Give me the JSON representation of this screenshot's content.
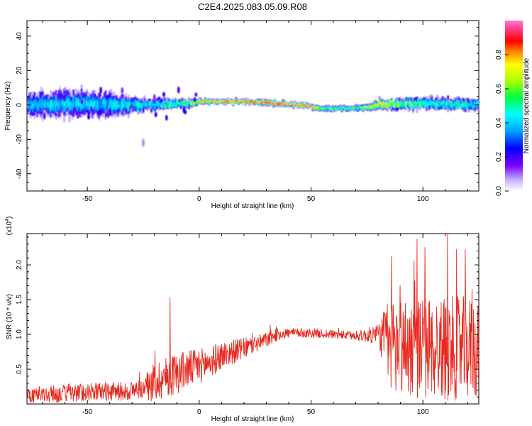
{
  "title": "C2E4.2025.083.05.09.R08",
  "colors": {
    "snr_line": "#e8281e",
    "axes": "#000000"
  },
  "chart_data": [
    {
      "type": "heatmap",
      "title": "",
      "xlabel": "Height of straight line (km)",
      "ylabel": "Frequency (Hz)",
      "xlim": [
        -77,
        125
      ],
      "ylim": [
        -50,
        49
      ],
      "xticks": [
        -50,
        0,
        50,
        100
      ],
      "yticks": [
        -40,
        -20,
        0,
        20,
        40
      ],
      "colorbar": {
        "label": "Normalized spectral amplitude",
        "range": [
          0,
          1
        ],
        "ticks": [
          "0.0",
          "0.2",
          "0.4",
          "0.6",
          "0.8"
        ],
        "colormap": "rainbow (violet-blue-cyan-green-yellow-red-magenta)"
      },
      "band": {
        "description": "energy concentrated near 0 Hz, wide and noisy below x = 0 km, narrow and strong between 0 and 80 km",
        "x_start": -77,
        "x_end": 125,
        "center_frequency_hz": [
          [
            -77,
            0
          ],
          [
            -60,
            1
          ],
          [
            -40,
            0
          ],
          [
            -20,
            0
          ],
          [
            -5,
            1
          ],
          [
            0,
            2
          ],
          [
            20,
            2
          ],
          [
            45,
            0
          ],
          [
            55,
            -2
          ],
          [
            70,
            -2
          ],
          [
            80,
            0
          ],
          [
            100,
            1
          ],
          [
            125,
            0
          ]
        ],
        "half_width_hz": [
          [
            -77,
            6
          ],
          [
            -60,
            7
          ],
          [
            -40,
            6
          ],
          [
            -25,
            3
          ],
          [
            -5,
            2
          ],
          [
            0,
            1.5
          ],
          [
            40,
            1.5
          ],
          [
            50,
            1.5
          ],
          [
            70,
            1.5
          ],
          [
            80,
            2.5
          ],
          [
            100,
            3
          ],
          [
            125,
            3
          ]
        ],
        "peak_amplitude": [
          [
            -77,
            0.4
          ],
          [
            -60,
            0.45
          ],
          [
            -40,
            0.45
          ],
          [
            -20,
            0.5
          ],
          [
            -5,
            0.6
          ],
          [
            0,
            0.85
          ],
          [
            20,
            0.9
          ],
          [
            43,
            0.95
          ],
          [
            48,
            1.0
          ],
          [
            55,
            0.6
          ],
          [
            70,
            0.6
          ],
          [
            80,
            0.75
          ],
          [
            100,
            0.55
          ],
          [
            125,
            0.5
          ]
        ]
      }
    },
    {
      "type": "line",
      "title": "",
      "xlabel": "Height of straight line (km)",
      "ylabel": "SNR (10 * v/v)",
      "scale_label": "(x10",
      "scale_exponent": "4",
      "scale_suffix": ")",
      "xlim": [
        -77,
        125
      ],
      "ylim": [
        0.0,
        2.45
      ],
      "xticks": [
        -50,
        0,
        50,
        100
      ],
      "yticks": [
        0.5,
        1.0,
        1.5,
        2.0
      ],
      "ytick_labels": [
        "0.5",
        "1.0",
        "1.5",
        "2.0"
      ],
      "series": [
        {
          "trend": [
            [
              -77,
              0.12
            ],
            [
              -60,
              0.15
            ],
            [
              -45,
              0.18
            ],
            [
              -33,
              0.18
            ],
            [
              -25,
              0.22
            ],
            [
              -20,
              0.32
            ],
            [
              -10,
              0.45
            ],
            [
              0,
              0.55
            ],
            [
              5,
              0.6
            ],
            [
              10,
              0.7
            ],
            [
              20,
              0.8
            ],
            [
              30,
              0.92
            ],
            [
              35,
              1.0
            ],
            [
              40,
              1.02
            ],
            [
              50,
              1.02
            ],
            [
              60,
              1.0
            ],
            [
              70,
              0.98
            ],
            [
              75,
              0.98
            ],
            [
              80,
              1.02
            ],
            [
              85,
              0.85
            ],
            [
              100,
              0.8
            ],
            [
              110,
              0.8
            ],
            [
              125,
              0.8
            ]
          ],
          "noise_amplitude": [
            [
              -77,
              0.12
            ],
            [
              -25,
              0.14
            ],
            [
              -20,
              0.3
            ],
            [
              -10,
              0.3
            ],
            [
              0,
              0.25
            ],
            [
              20,
              0.15
            ],
            [
              40,
              0.07
            ],
            [
              70,
              0.06
            ],
            [
              80,
              0.15
            ],
            [
              85,
              0.7
            ],
            [
              100,
              0.75
            ],
            [
              125,
              0.75
            ]
          ],
          "notable_peaks": [
            [
              -13,
              1.53
            ],
            [
              86,
              2.12
            ],
            [
              96,
              2.06
            ],
            [
              111,
              2.47
            ],
            [
              115,
              2.22
            ],
            [
              119,
              2.22
            ],
            [
              122,
              1.65
            ]
          ]
        }
      ]
    }
  ]
}
